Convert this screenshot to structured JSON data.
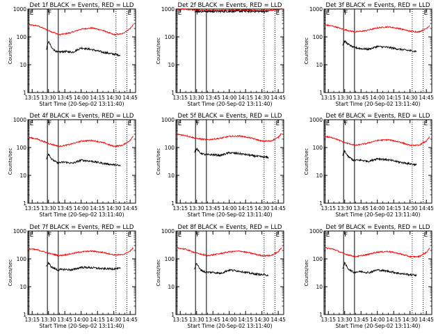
{
  "figure": {
    "x_tick_labels": [
      "13:15",
      "13:30",
      "13:45",
      "14:00",
      "14:15",
      "14:30",
      "14:45"
    ],
    "x_axis_title": "Start Time (20-Sep-02 13:11:40)",
    "y_axis_title": "Counts/sec",
    "y_tick_labels": [
      "1",
      "10",
      "100",
      "1000"
    ],
    "marker_label_F": "F",
    "marker_label_E": "E",
    "colors": {
      "events": "#000000",
      "lld": "#ff0000",
      "axes": "#000000",
      "background": "#ffffff"
    }
  },
  "chart_data": [
    {
      "type": "line",
      "title": "Det 1f BLACK = Events, RED = LLD",
      "xlabel": "Start Time (20-Sep-02 13:11:40)",
      "ylabel": "Counts/sec",
      "y_scale": "log",
      "ylim": [
        1,
        1000
      ],
      "xlim": [
        "13:11",
        "14:50"
      ],
      "x_ticks": [
        "13:15",
        "13:30",
        "13:45",
        "14:00",
        "14:15",
        "14:30",
        "14:45"
      ],
      "vertical_lines": [
        {
          "time": "13:12",
          "style": "solid",
          "label": "E"
        },
        {
          "time": "13:29",
          "style": "solid",
          "label": "F"
        },
        {
          "time": "13:39",
          "style": "solid"
        },
        {
          "time": "14:32",
          "style": "dotted"
        },
        {
          "time": "14:42",
          "style": "dotted",
          "label": "E"
        }
      ],
      "series": [
        {
          "color": "#ff0000",
          "x": [
            "13:12",
            "13:20",
            "13:30",
            "13:40",
            "13:50",
            "14:00",
            "14:10",
            "14:20",
            "14:30",
            "14:38",
            "14:45",
            "14:48"
          ],
          "values": [
            270,
            250,
            170,
            120,
            140,
            190,
            210,
            170,
            120,
            130,
            200,
            280
          ]
        },
        {
          "color": "#000000",
          "x": [
            "13:28",
            "13:30",
            "13:33",
            "13:38",
            "13:45",
            "13:52",
            "14:00",
            "14:10",
            "14:20",
            "14:30",
            "14:36"
          ],
          "values": [
            35,
            70,
            40,
            28,
            30,
            28,
            40,
            35,
            28,
            24,
            22
          ]
        }
      ]
    },
    {
      "type": "line",
      "title": "Det 2f BLACK = Events, RED = LLD",
      "xlabel": "Start Time (20-Sep-02 13:11:40)",
      "ylabel": "Counts/sec",
      "y_scale": "log",
      "ylim": [
        1,
        1000
      ],
      "xlim": [
        "13:11",
        "14:50"
      ],
      "x_ticks": [
        "13:15",
        "13:30",
        "13:45",
        "14:00",
        "14:15",
        "14:30",
        "14:45"
      ],
      "vertical_lines": [
        {
          "time": "13:12",
          "style": "solid",
          "label": "E"
        },
        {
          "time": "13:29",
          "style": "solid",
          "label": "F"
        },
        {
          "time": "13:39",
          "style": "solid"
        },
        {
          "time": "14:32",
          "style": "dotted"
        },
        {
          "time": "14:42",
          "style": "dotted",
          "label": "E"
        }
      ],
      "series": [
        {
          "color": "#ff0000",
          "x": [
            "13:12",
            "13:20",
            "13:30",
            "13:40",
            "13:50",
            "14:00",
            "14:10",
            "14:20",
            "14:30",
            "14:38",
            "14:45",
            "14:48"
          ],
          "values": [
            1000,
            980,
            920,
            880,
            880,
            900,
            920,
            910,
            890,
            900,
            950,
            1050
          ]
        },
        {
          "color": "#000000",
          "x": [
            "13:28",
            "13:30",
            "13:40",
            "13:50",
            "14:00",
            "14:10",
            "14:20",
            "14:30",
            "14:36"
          ],
          "values": [
            860,
            830,
            820,
            820,
            830,
            840,
            830,
            820,
            810
          ]
        }
      ]
    },
    {
      "type": "line",
      "title": "Det 3f BLACK = Events, RED = LLD",
      "xlabel": "Start Time (20-Sep-02 13:11:40)",
      "ylabel": "Counts/sec",
      "y_scale": "log",
      "ylim": [
        1,
        1000
      ],
      "xlim": [
        "13:11",
        "14:50"
      ],
      "x_ticks": [
        "13:15",
        "13:30",
        "13:45",
        "14:00",
        "14:15",
        "14:30",
        "14:45"
      ],
      "vertical_lines": [
        {
          "time": "13:12",
          "style": "solid",
          "label": "E"
        },
        {
          "time": "13:29",
          "style": "solid",
          "label": "F"
        },
        {
          "time": "13:39",
          "style": "solid"
        },
        {
          "time": "14:32",
          "style": "dotted"
        },
        {
          "time": "14:42",
          "style": "dotted",
          "label": "E"
        }
      ],
      "series": [
        {
          "color": "#ff0000",
          "x": [
            "13:12",
            "13:20",
            "13:30",
            "13:40",
            "13:50",
            "14:00",
            "14:10",
            "14:20",
            "14:30",
            "14:38",
            "14:45",
            "14:48"
          ],
          "values": [
            270,
            240,
            180,
            150,
            170,
            210,
            230,
            200,
            160,
            150,
            200,
            260
          ]
        },
        {
          "color": "#000000",
          "x": [
            "13:28",
            "13:30",
            "13:33",
            "13:38",
            "13:45",
            "13:52",
            "14:00",
            "14:10",
            "14:20",
            "14:30",
            "14:36"
          ],
          "values": [
            50,
            70,
            55,
            42,
            38,
            36,
            45,
            42,
            36,
            32,
            30
          ]
        }
      ]
    },
    {
      "type": "line",
      "title": "Det 4f BLACK = Events, RED = LLD",
      "xlabel": "Start Time (20-Sep-02 13:11:40)",
      "ylabel": "Counts/sec",
      "y_scale": "log",
      "ylim": [
        1,
        1000
      ],
      "xlim": [
        "13:11",
        "14:50"
      ],
      "x_ticks": [
        "13:15",
        "13:30",
        "13:45",
        "14:00",
        "14:15",
        "14:30",
        "14:45"
      ],
      "vertical_lines": [
        {
          "time": "13:12",
          "style": "solid",
          "label": "E"
        },
        {
          "time": "13:29",
          "style": "solid",
          "label": "F"
        },
        {
          "time": "13:39",
          "style": "solid"
        },
        {
          "time": "14:32",
          "style": "dotted"
        },
        {
          "time": "14:42",
          "style": "dotted",
          "label": "E"
        }
      ],
      "series": [
        {
          "color": "#ff0000",
          "x": [
            "13:12",
            "13:20",
            "13:30",
            "13:40",
            "13:50",
            "14:00",
            "14:10",
            "14:20",
            "14:30",
            "14:38",
            "14:45",
            "14:48"
          ],
          "values": [
            230,
            200,
            140,
            110,
            130,
            170,
            180,
            150,
            110,
            120,
            180,
            260
          ]
        },
        {
          "color": "#000000",
          "x": [
            "13:28",
            "13:30",
            "13:33",
            "13:38",
            "13:45",
            "13:52",
            "14:00",
            "14:10",
            "14:20",
            "14:30",
            "14:36"
          ],
          "values": [
            40,
            60,
            38,
            28,
            30,
            27,
            35,
            32,
            27,
            24,
            22
          ]
        }
      ]
    },
    {
      "type": "line",
      "title": "Det 5f BLACK = Events, RED = LLD",
      "xlabel": "Start Time (20-Sep-02 13:11:40)",
      "ylabel": "Counts/sec",
      "y_scale": "log",
      "ylim": [
        1,
        1000
      ],
      "xlim": [
        "13:11",
        "14:50"
      ],
      "x_ticks": [
        "13:15",
        "13:30",
        "13:45",
        "14:00",
        "14:15",
        "14:30",
        "14:45"
      ],
      "vertical_lines": [
        {
          "time": "13:12",
          "style": "solid",
          "label": "E"
        },
        {
          "time": "13:29",
          "style": "solid",
          "label": "F"
        },
        {
          "time": "13:39",
          "style": "solid"
        },
        {
          "time": "14:32",
          "style": "dotted"
        },
        {
          "time": "14:42",
          "style": "dotted",
          "label": "E"
        }
      ],
      "series": [
        {
          "color": "#ff0000",
          "x": [
            "13:12",
            "13:20",
            "13:30",
            "13:40",
            "13:50",
            "14:00",
            "14:10",
            "14:20",
            "14:30",
            "14:38",
            "14:45",
            "14:48"
          ],
          "values": [
            300,
            270,
            210,
            190,
            210,
            250,
            260,
            220,
            170,
            170,
            230,
            330
          ]
        },
        {
          "color": "#000000",
          "x": [
            "13:28",
            "13:30",
            "13:33",
            "13:38",
            "13:45",
            "13:52",
            "14:00",
            "14:10",
            "14:20",
            "14:30",
            "14:36"
          ],
          "values": [
            70,
            90,
            65,
            55,
            55,
            52,
            65,
            60,
            52,
            46,
            44
          ]
        }
      ]
    },
    {
      "type": "line",
      "title": "Det 6f BLACK = Events, RED = LLD",
      "xlabel": "Start Time (20-Sep-02 13:11:40)",
      "ylabel": "Counts/sec",
      "y_scale": "log",
      "ylim": [
        1,
        1000
      ],
      "xlim": [
        "13:11",
        "14:50"
      ],
      "x_ticks": [
        "13:15",
        "13:30",
        "13:45",
        "14:00",
        "14:15",
        "14:30",
        "14:45"
      ],
      "vertical_lines": [
        {
          "time": "13:12",
          "style": "solid",
          "label": "E"
        },
        {
          "time": "13:29",
          "style": "solid",
          "label": "F"
        },
        {
          "time": "13:39",
          "style": "solid"
        },
        {
          "time": "14:32",
          "style": "dotted"
        },
        {
          "time": "14:42",
          "style": "dotted",
          "label": "E"
        }
      ],
      "series": [
        {
          "color": "#ff0000",
          "x": [
            "13:12",
            "13:20",
            "13:30",
            "13:40",
            "13:50",
            "14:00",
            "14:10",
            "14:20",
            "14:30",
            "14:38",
            "14:45",
            "14:48"
          ],
          "values": [
            250,
            220,
            150,
            120,
            140,
            180,
            190,
            160,
            120,
            120,
            170,
            240
          ]
        },
        {
          "color": "#000000",
          "x": [
            "13:28",
            "13:30",
            "13:33",
            "13:38",
            "13:45",
            "13:52",
            "14:00",
            "14:10",
            "14:20",
            "14:30",
            "14:36"
          ],
          "values": [
            50,
            75,
            48,
            35,
            35,
            32,
            40,
            36,
            30,
            26,
            24
          ]
        }
      ]
    },
    {
      "type": "line",
      "title": "Det 7f BLACK = Events, RED = LLD",
      "xlabel": "Start Time (20-Sep-02 13:11:40)",
      "ylabel": "Counts/sec",
      "y_scale": "log",
      "ylim": [
        1,
        1000
      ],
      "xlim": [
        "13:11",
        "14:50"
      ],
      "x_ticks": [
        "13:15",
        "13:30",
        "13:45",
        "14:00",
        "14:15",
        "14:30",
        "14:45"
      ],
      "vertical_lines": [
        {
          "time": "13:12",
          "style": "solid",
          "label": "E"
        },
        {
          "time": "13:29",
          "style": "solid",
          "label": "F"
        },
        {
          "time": "13:39",
          "style": "solid"
        },
        {
          "time": "14:32",
          "style": "dotted"
        },
        {
          "time": "14:42",
          "style": "dotted",
          "label": "E"
        }
      ],
      "series": [
        {
          "color": "#ff0000",
          "x": [
            "13:12",
            "13:20",
            "13:30",
            "13:40",
            "13:50",
            "14:00",
            "14:10",
            "14:20",
            "14:30",
            "14:38",
            "14:45",
            "14:48"
          ],
          "values": [
            230,
            210,
            160,
            130,
            150,
            180,
            190,
            170,
            140,
            140,
            190,
            250
          ]
        },
        {
          "color": "#000000",
          "x": [
            "13:28",
            "13:30",
            "13:33",
            "13:38",
            "13:45",
            "13:52",
            "14:00",
            "14:10",
            "14:20",
            "14:30",
            "14:36"
          ],
          "values": [
            55,
            70,
            50,
            40,
            42,
            40,
            50,
            48,
            44,
            44,
            45
          ]
        }
      ]
    },
    {
      "type": "line",
      "title": "Det 8f BLACK = Events, RED = LLD",
      "xlabel": "Start Time (20-Sep-02 13:11:40)",
      "ylabel": "Counts/sec",
      "y_scale": "log",
      "ylim": [
        1,
        1000
      ],
      "xlim": [
        "13:11",
        "14:50"
      ],
      "x_ticks": [
        "13:15",
        "13:30",
        "13:45",
        "14:00",
        "14:15",
        "14:30",
        "14:45"
      ],
      "vertical_lines": [
        {
          "time": "13:12",
          "style": "solid",
          "label": "E"
        },
        {
          "time": "13:29",
          "style": "solid",
          "label": "F"
        },
        {
          "time": "13:39",
          "style": "solid"
        },
        {
          "time": "14:32",
          "style": "dotted"
        },
        {
          "time": "14:42",
          "style": "dotted",
          "label": "E"
        }
      ],
      "series": [
        {
          "color": "#ff0000",
          "x": [
            "13:12",
            "13:20",
            "13:30",
            "13:40",
            "13:50",
            "14:00",
            "14:10",
            "14:20",
            "14:30",
            "14:38",
            "14:45",
            "14:48"
          ],
          "values": [
            250,
            220,
            160,
            130,
            150,
            180,
            190,
            160,
            130,
            130,
            180,
            250
          ]
        },
        {
          "color": "#000000",
          "x": [
            "13:28",
            "13:30",
            "13:33",
            "13:38",
            "13:45",
            "13:52",
            "14:00",
            "14:10",
            "14:20",
            "14:30",
            "14:36"
          ],
          "values": [
            45,
            70,
            42,
            33,
            33,
            30,
            40,
            36,
            30,
            27,
            26
          ]
        }
      ]
    },
    {
      "type": "line",
      "title": "Det 9f BLACK = Events, RED = LLD",
      "xlabel": "Start Time (20-Sep-02 13:11:40)",
      "ylabel": "Counts/sec",
      "y_scale": "log",
      "ylim": [
        1,
        1000
      ],
      "xlim": [
        "13:11",
        "14:50"
      ],
      "x_ticks": [
        "13:15",
        "13:30",
        "13:45",
        "14:00",
        "14:15",
        "14:30",
        "14:45"
      ],
      "vertical_lines": [
        {
          "time": "13:12",
          "style": "solid",
          "label": "E"
        },
        {
          "time": "13:29",
          "style": "solid",
          "label": "F"
        },
        {
          "time": "13:39",
          "style": "solid"
        },
        {
          "time": "14:32",
          "style": "dotted"
        },
        {
          "time": "14:42",
          "style": "dotted",
          "label": "E"
        }
      ],
      "series": [
        {
          "color": "#ff0000",
          "x": [
            "13:12",
            "13:20",
            "13:30",
            "13:40",
            "13:50",
            "14:00",
            "14:10",
            "14:20",
            "14:30",
            "14:38",
            "14:45",
            "14:48"
          ],
          "values": [
            250,
            220,
            150,
            120,
            140,
            175,
            185,
            155,
            120,
            120,
            170,
            240
          ]
        },
        {
          "color": "#000000",
          "x": [
            "13:28",
            "13:30",
            "13:33",
            "13:38",
            "13:45",
            "13:52",
            "14:00",
            "14:10",
            "14:20",
            "14:30",
            "14:36"
          ],
          "values": [
            45,
            70,
            45,
            33,
            35,
            32,
            40,
            36,
            30,
            27,
            26
          ]
        }
      ]
    }
  ]
}
